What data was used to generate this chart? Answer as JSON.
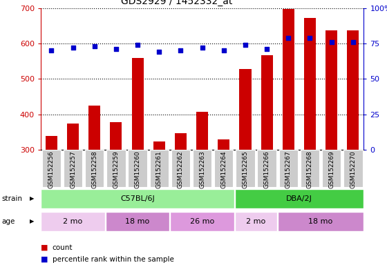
{
  "title": "GDS2929 / 1452332_at",
  "samples": [
    "GSM152256",
    "GSM152257",
    "GSM152258",
    "GSM152259",
    "GSM152260",
    "GSM152261",
    "GSM152262",
    "GSM152263",
    "GSM152264",
    "GSM152265",
    "GSM152266",
    "GSM152267",
    "GSM152268",
    "GSM152269",
    "GSM152270"
  ],
  "counts": [
    338,
    373,
    425,
    378,
    558,
    323,
    347,
    407,
    330,
    528,
    566,
    697,
    672,
    636,
    636
  ],
  "percentile": [
    70,
    72,
    73,
    71,
    74,
    69,
    70,
    72,
    70,
    74,
    71,
    79,
    79,
    76,
    76
  ],
  "ylim_left": [
    300,
    700
  ],
  "ylim_right": [
    0,
    100
  ],
  "yticks_left": [
    300,
    400,
    500,
    600,
    700
  ],
  "yticks_right": [
    0,
    25,
    50,
    75,
    100
  ],
  "bar_color": "#cc0000",
  "dot_color": "#0000cc",
  "label_bg": "#cccccc",
  "strain_groups": [
    {
      "label": "C57BL/6J",
      "start": 0,
      "end": 9,
      "color": "#99ee99"
    },
    {
      "label": "DBA/2J",
      "start": 9,
      "end": 15,
      "color": "#44cc44"
    }
  ],
  "age_groups": [
    {
      "label": "2 mo",
      "start": 0,
      "end": 3,
      "color": "#eeccee"
    },
    {
      "label": "18 mo",
      "start": 3,
      "end": 6,
      "color": "#cc88cc"
    },
    {
      "label": "26 mo",
      "start": 6,
      "end": 9,
      "color": "#cc88cc"
    },
    {
      "label": "2 mo",
      "start": 9,
      "end": 11,
      "color": "#eeccee"
    },
    {
      "label": "18 mo",
      "start": 11,
      "end": 15,
      "color": "#cc88cc"
    }
  ],
  "strain_label": "strain",
  "age_label": "age",
  "legend_count": "count",
  "legend_pct": "percentile rank within the sample",
  "title_fontsize": 10,
  "tick_fontsize": 6.5,
  "bar_width": 0.55
}
